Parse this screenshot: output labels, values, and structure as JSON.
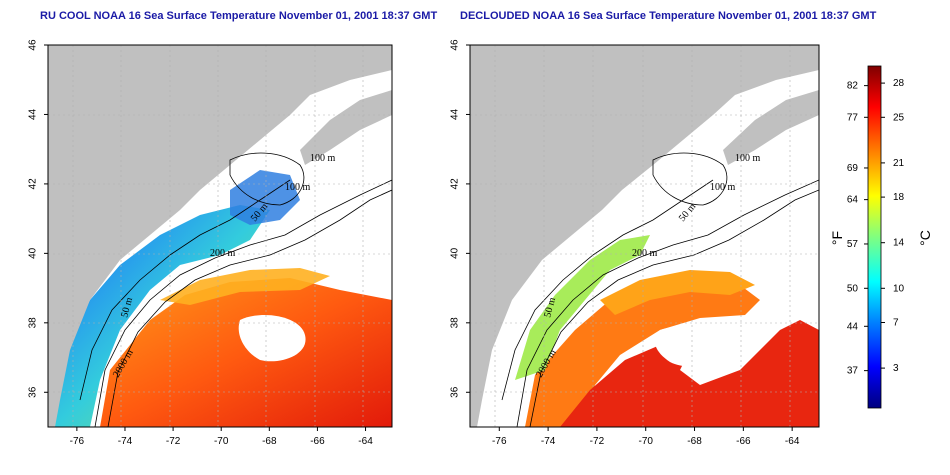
{
  "panels": [
    {
      "title": "RU COOL NOAA 16 Sea Surface Temperature November 01, 2001 18:37 GMT",
      "contour_labels": [
        "100 m",
        "100 m",
        "50 m",
        "200 m",
        "50 m",
        "2000 m"
      ]
    },
    {
      "title": "DECLOUDED NOAA 16 Sea Surface Temperature November 01, 2001 18:37 GMT",
      "contour_labels": [
        "100 m",
        "100 m",
        "50 m",
        "200 m",
        "50 m",
        "2000 m"
      ]
    }
  ],
  "axes": {
    "lon_ticks": [
      "-76",
      "-74",
      "-72",
      "-70",
      "-68",
      "-66",
      "-64"
    ],
    "lat_ticks": [
      "36",
      "38",
      "40",
      "42",
      "44",
      "46"
    ],
    "lon_range": [
      -77.2,
      -62.9
    ],
    "lat_range": [
      35.0,
      46.0
    ]
  },
  "colorbar": {
    "fahrenheit_label": "°F",
    "celsius_label": "°C",
    "fahrenheit_ticks": [
      "82",
      "77",
      "69",
      "64",
      "57",
      "50",
      "44",
      "37"
    ],
    "celsius_ticks": [
      "28",
      "25",
      "21",
      "18",
      "14",
      "10",
      "7",
      "3"
    ],
    "celsius_range": [
      -0.5,
      29.5
    ],
    "colors": [
      "#00007f",
      "#0000ff",
      "#0080ff",
      "#00ffff",
      "#80ff80",
      "#ffff00",
      "#ff8000",
      "#ff0000",
      "#7f0000"
    ]
  },
  "colors": {
    "land": "#c0c0c0",
    "title": "#1a1aa6",
    "no_data": "#ffffff"
  }
}
